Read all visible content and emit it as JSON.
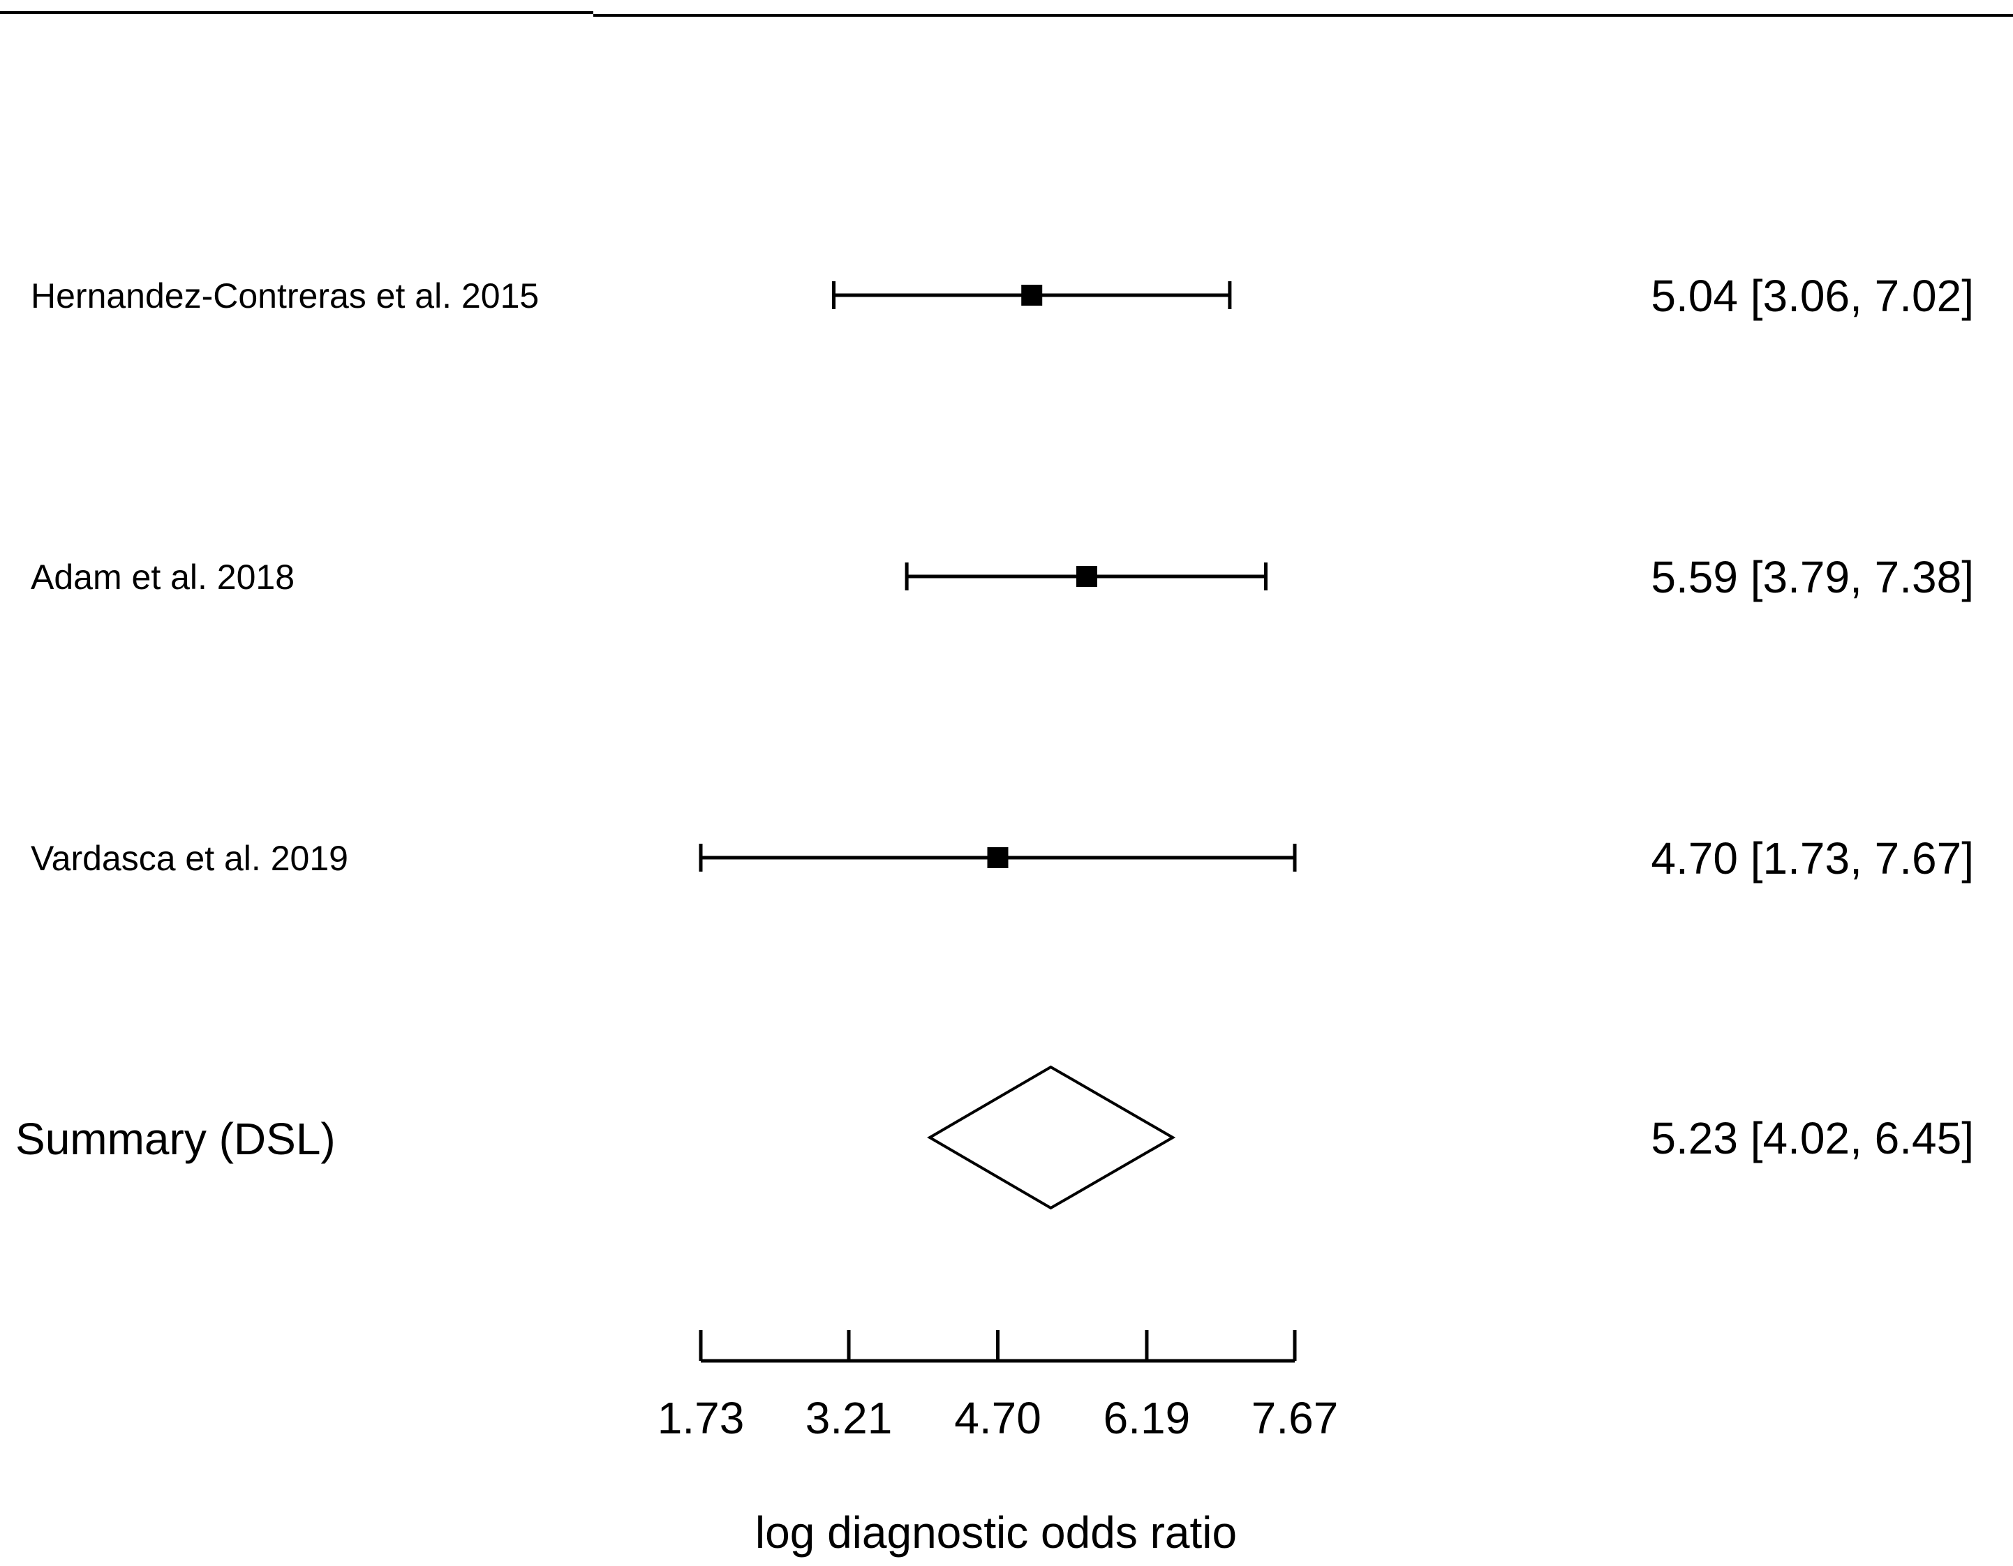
{
  "chart_data": {
    "type": "forest",
    "xlabel": "log diagnostic odds ratio",
    "xlim": [
      1.73,
      7.67
    ],
    "xticks": [
      1.73,
      3.21,
      4.7,
      6.19,
      7.67
    ],
    "xtick_labels": [
      "1.73",
      "3.21",
      "4.70",
      "6.19",
      "7.67"
    ],
    "studies": [
      {
        "name": "Hernandez-Contreras et al. 2015",
        "estimate": 5.04,
        "lower": 3.06,
        "upper": 7.02,
        "text": "5.04 [3.06, 7.02]"
      },
      {
        "name": "Adam et al. 2018",
        "estimate": 5.59,
        "lower": 3.79,
        "upper": 7.38,
        "text": "5.59 [3.79, 7.38]"
      },
      {
        "name": "Vardasca et al. 2019",
        "estimate": 4.7,
        "lower": 1.73,
        "upper": 7.67,
        "text": "4.70 [1.73, 7.67]"
      }
    ],
    "summary": {
      "name": "Summary (DSL)",
      "estimate": 5.23,
      "lower": 4.02,
      "upper": 6.45,
      "text": "5.23 [4.02, 6.45]"
    }
  }
}
